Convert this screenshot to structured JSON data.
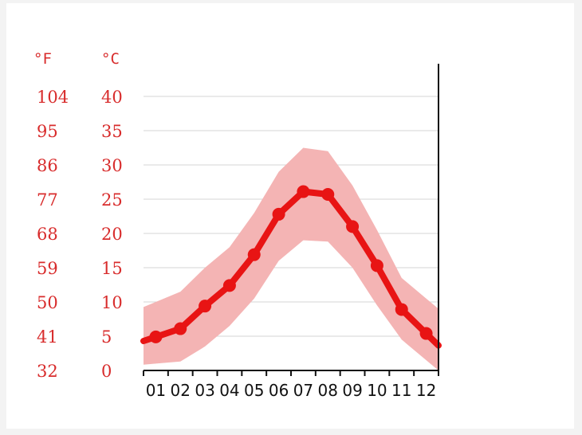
{
  "chart_data": {
    "type": "line",
    "x": [
      "01",
      "02",
      "03",
      "04",
      "05",
      "06",
      "07",
      "08",
      "09",
      "10",
      "11",
      "12"
    ],
    "unit_left": "°F",
    "unit_right": "°C",
    "ticks_c": [
      "0",
      "5",
      "10",
      "15",
      "20",
      "25",
      "30",
      "35",
      "40"
    ],
    "ticks_f": [
      "32",
      "41",
      "50",
      "59",
      "68",
      "77",
      "86",
      "95",
      "104"
    ],
    "ylim": [
      0,
      40
    ],
    "grid": true,
    "series": [
      {
        "role": "mean",
        "values": [
          4.9,
          6.1,
          9.4,
          12.4,
          16.9,
          22.8,
          26.1,
          25.7,
          21.0,
          15.3,
          8.9,
          5.4
        ]
      },
      {
        "role": "max",
        "values": [
          10.0,
          11.5,
          15.0,
          18.0,
          23.0,
          29.0,
          32.5,
          32.0,
          27.0,
          20.5,
          13.5,
          10.5
        ]
      },
      {
        "role": "min",
        "values": [
          1.0,
          1.3,
          3.5,
          6.5,
          10.5,
          16.0,
          19.0,
          18.8,
          15.0,
          9.5,
          4.5,
          1.5
        ]
      }
    ],
    "colors": {
      "line": "#e81414",
      "band": "#f4b4b4",
      "grid": "#d4d4d4",
      "labels": "#d82c2c",
      "axis": "#111111"
    }
  }
}
